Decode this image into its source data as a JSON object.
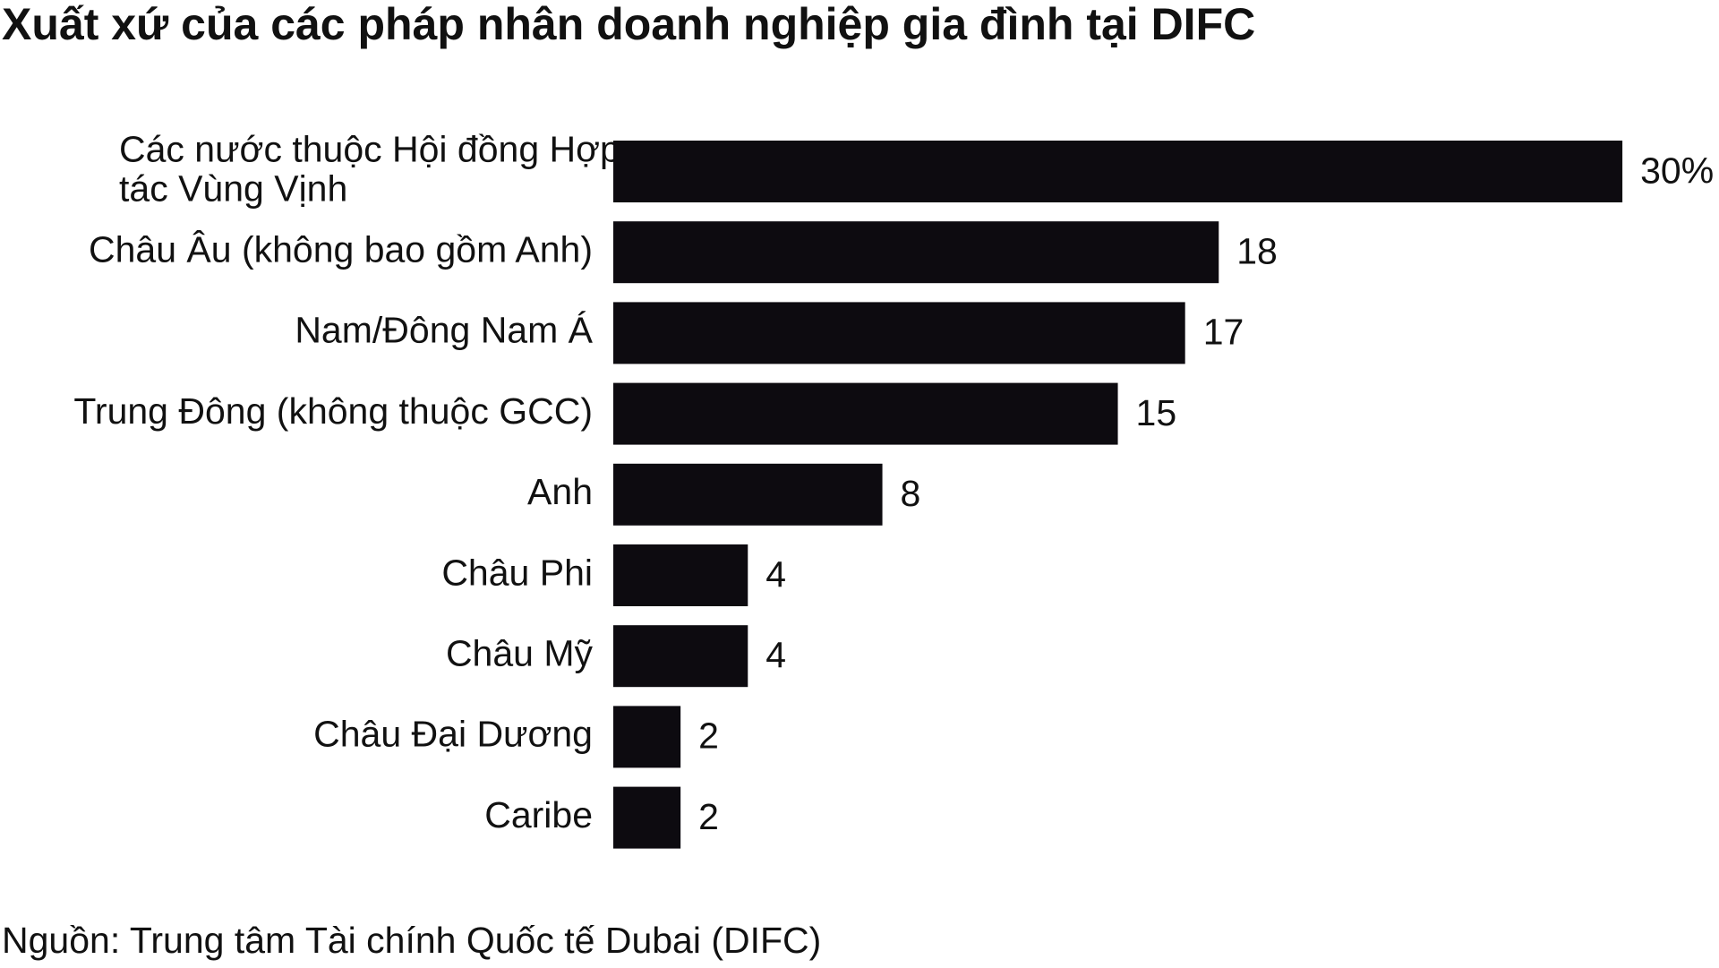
{
  "chart_data": {
    "type": "bar",
    "orientation": "horizontal",
    "title": "Xuất xứ của các pháp nhân doanh nghiệp gia đình tại DIFC",
    "categories": [
      "Các nước thuộc Hội đồng Hợp tác Vùng Vịnh",
      "Châu Âu (không bao gồm Anh)",
      "Nam/Đông Nam Á",
      "Trung Đông (không thuộc GCC)",
      "Anh",
      "Châu Phi",
      "Châu Mỹ",
      "Châu Đại Dương",
      "Caribe"
    ],
    "values": [
      30,
      18,
      17,
      15,
      8,
      4,
      4,
      2,
      2
    ],
    "value_labels": [
      "30%",
      "18",
      "17",
      "15",
      "8",
      "4",
      "4",
      "2",
      "2"
    ],
    "color": "#0d0b10",
    "source": "Nguồn: Trung tâm Tài chính Quốc tế Dubai (DIFC)"
  }
}
